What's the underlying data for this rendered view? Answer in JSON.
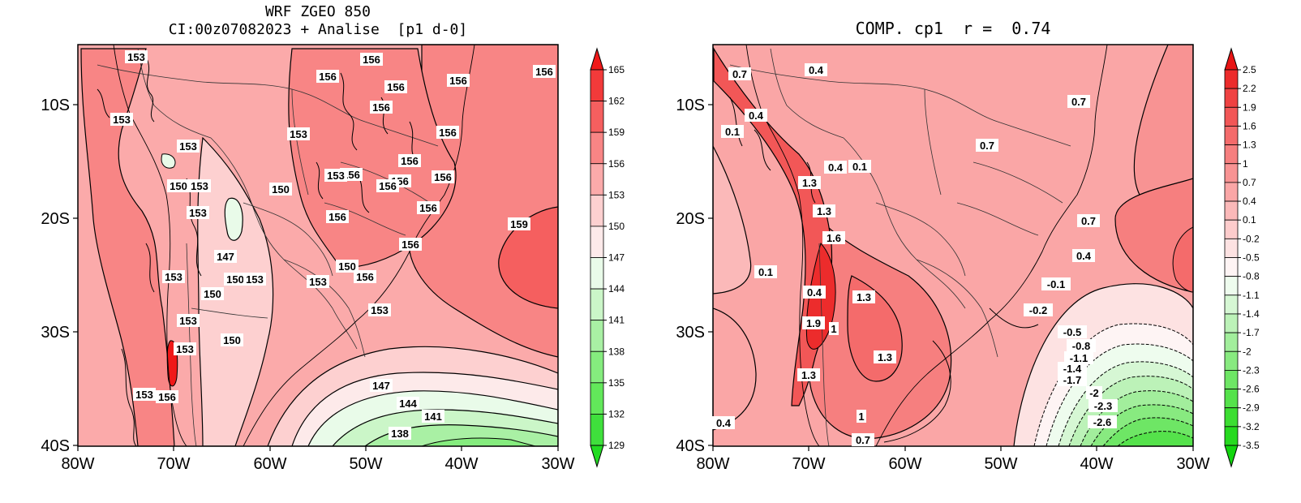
{
  "panels": [
    {
      "title_line1": "WRF ZGEO 850",
      "title_line2": "CI:00z07082023 + Analise  [p1 d-0]",
      "lon_ticks": [
        "80W",
        "70W",
        "60W",
        "50W",
        "40W",
        "30W"
      ],
      "lat_ticks": [
        "10S",
        "20S",
        "30S",
        "40S"
      ],
      "colorbar_labels": [
        "165",
        "162",
        "159",
        "156",
        "153",
        "150",
        "147",
        "144",
        "141",
        "138",
        "135",
        "132",
        "129"
      ],
      "colorbar_colors": [
        "#f01818",
        "#f23a3a",
        "#f55f5f",
        "#f88585",
        "#fbaaaa",
        "#fdd0d0",
        "#fdeaea",
        "#e9fbe9",
        "#cbf6c8",
        "#a9f0a4",
        "#85ec7e",
        "#62e85a",
        "#3fe03c",
        "#22dc22"
      ],
      "contour_labels": [
        "153",
        "156",
        "156",
        "156",
        "156",
        "156",
        "156",
        "153",
        "153",
        "156",
        "153",
        "156",
        "156",
        "156",
        "156",
        "153",
        "150",
        "150",
        "153",
        "156",
        "156",
        "159",
        "147",
        "153",
        "156",
        "150",
        "153",
        "150",
        "150",
        "153",
        "153",
        "153",
        "153",
        "153",
        "150",
        "156",
        "156",
        "147",
        "144",
        "141",
        "138",
        "156",
        "153"
      ]
    },
    {
      "title_line1": "COMP. cp1  r =  0.74",
      "title_line2": "",
      "lon_ticks": [
        "80W",
        "70W",
        "60W",
        "50W",
        "40W",
        "30W"
      ],
      "lat_ticks": [
        "10S",
        "20S",
        "30S",
        "40S"
      ],
      "colorbar_labels": [
        "2.5",
        "2.2",
        "1.9",
        "1.6",
        "1.3",
        "1",
        "0.7",
        "0.4",
        "0.1",
        "-0.2",
        "-0.5",
        "-0.8",
        "-1.1",
        "-1.4",
        "-1.7",
        "-2",
        "-2.3",
        "-2.6",
        "-2.9",
        "-3.2",
        "-3.5"
      ],
      "colorbar_colors": [
        "#e81414",
        "#ec2c2c",
        "#ef4242",
        "#f25757",
        "#f46b6b",
        "#f67f7f",
        "#f89393",
        "#faa6a6",
        "#fbb9b9",
        "#fdcccc",
        "#fde2e2",
        "#fef4f4",
        "#eefcee",
        "#d6f7d4",
        "#bcf2b8",
        "#a2ee9c",
        "#88ea80",
        "#6ee665",
        "#55e24b",
        "#3cde32",
        "#26da1f",
        "#12d60e"
      ],
      "contour_labels": [
        "0.7",
        "0.4",
        "0.1",
        "0.4",
        "0.7",
        "0.7",
        "0.4",
        "0.1",
        "1.3",
        "1.3",
        "1.6",
        "0.7",
        "0.4",
        "0.4",
        "0.1",
        "-0.1",
        "-0.2",
        "1.3",
        "1.9",
        "1",
        "1.3",
        "-0.5",
        "-0.8",
        "-1.1",
        "-1.4",
        "-1.7",
        "-2",
        "1.3",
        "-2.3",
        "-2.6",
        "1",
        "0.4",
        "0.7"
      ]
    }
  ]
}
